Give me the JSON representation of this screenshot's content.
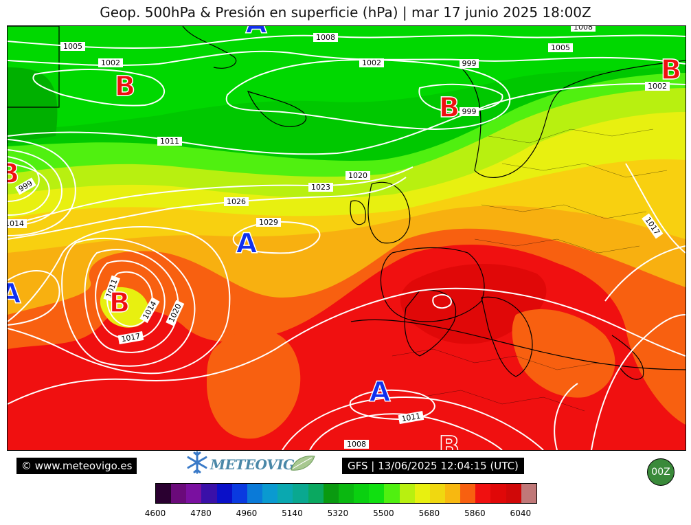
{
  "title": "Geop. 500hPa & Presión en superficie (hPa) | mar 17 junio 2025 18:00Z",
  "footer": {
    "copyright": "© www.meteovigo.es",
    "logo_text": "METEOVIGO",
    "run_info": "GFS | 13/06/2025 12:04:15 (UTC)",
    "run_badge": "00Z"
  },
  "colorbar": {
    "colors": [
      "#2a0030",
      "#6a0a7a",
      "#7a10a0",
      "#3a10a8",
      "#0a10c8",
      "#0a3ae0",
      "#0a7ad8",
      "#0a9ad0",
      "#0aa8b0",
      "#0aa890",
      "#0aa860",
      "#0a9a10",
      "#0ab810",
      "#0ad010",
      "#10e010",
      "#50f010",
      "#b8f010",
      "#e8f010",
      "#f0d810",
      "#f8b810",
      "#f86010",
      "#f01010",
      "#e00808",
      "#d00808",
      "#c07878"
    ],
    "tick_labels": [
      "4600",
      "4780",
      "4960",
      "5140",
      "5320",
      "5500",
      "5680",
      "5860",
      "6040"
    ]
  },
  "map": {
    "pressure_centers": [
      {
        "letter": "A",
        "type": "high",
        "color": "#1030ee"
      },
      {
        "letter": "B",
        "type": "low",
        "color": "#ee1010"
      },
      {
        "letter": "B",
        "type": "low",
        "color": "#ee1010"
      },
      {
        "letter": "B",
        "type": "low",
        "color": "#ee1010"
      },
      {
        "letter": "B",
        "type": "low",
        "color": "#ee1010"
      },
      {
        "letter": "A",
        "type": "high",
        "color": "#1030ee"
      },
      {
        "letter": "A",
        "type": "high",
        "color": "#1030ee"
      },
      {
        "letter": "B",
        "type": "low",
        "color": "#ee1010"
      },
      {
        "letter": "A",
        "type": "high",
        "color": "#1030ee"
      },
      {
        "letter": "B",
        "type": "low",
        "color": "#ee1010"
      }
    ],
    "isobar_labels": [
      "1005",
      "1002",
      "1008",
      "1002",
      "999",
      "1008",
      "1005",
      "1002",
      "999",
      "1011",
      "999",
      "1020",
      "1023",
      "1026",
      "1029",
      "1014",
      "1011",
      "1014",
      "1020",
      "1017",
      "1017",
      "1011",
      "1008"
    ]
  }
}
